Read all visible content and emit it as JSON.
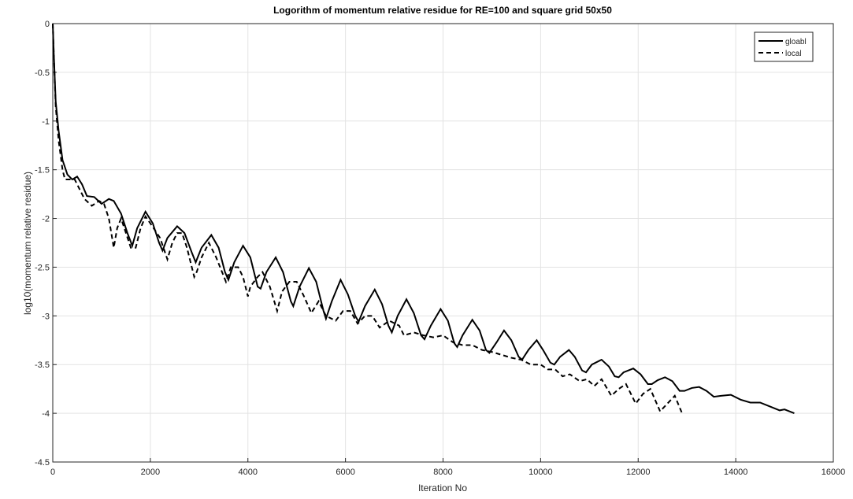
{
  "chart_data": {
    "type": "line",
    "title": "Logorithm of momentum relative residue for RE=100 and square grid 50x50",
    "x_label": "Iteration No",
    "y_label": "log10(momentum relative residue)",
    "xlim": [
      0,
      16000
    ],
    "xticks": [
      0,
      2000,
      4000,
      6000,
      8000,
      10000,
      12000,
      14000,
      16000
    ],
    "ylim": [
      -4.5,
      0
    ],
    "yticks": [
      -4.5,
      -4,
      -3.5,
      -3,
      -2.5,
      -2,
      -1.5,
      -1,
      -0.5,
      0
    ],
    "grid": true,
    "legend_position": "northeast",
    "series": [
      {
        "name": "gloabl",
        "color": "#000000",
        "line_style": "solid",
        "x": [
          0,
          20,
          60,
          120,
          200,
          300,
          400,
          500,
          600,
          700,
          850,
          1000,
          1150,
          1250,
          1400,
          1530,
          1630,
          1730,
          1900,
          2050,
          2180,
          2250,
          2350,
          2550,
          2700,
          2850,
          2930,
          3050,
          3250,
          3400,
          3530,
          3600,
          3720,
          3900,
          4050,
          4200,
          4260,
          4380,
          4570,
          4720,
          4880,
          4930,
          5060,
          5250,
          5400,
          5550,
          5600,
          5720,
          5900,
          6050,
          6200,
          6270,
          6400,
          6600,
          6750,
          6880,
          6950,
          7070,
          7250,
          7400,
          7550,
          7620,
          7750,
          7950,
          8100,
          8230,
          8290,
          8400,
          8600,
          8750,
          8880,
          8950,
          9100,
          9250,
          9400,
          9550,
          9620,
          9750,
          9920,
          10050,
          10200,
          10280,
          10400,
          10580,
          10700,
          10850,
          10930,
          11050,
          11250,
          11400,
          11520,
          11600,
          11700,
          11900,
          12050,
          12200,
          12280,
          12400,
          12550,
          12700,
          12850,
          12950,
          13100,
          13250,
          13400,
          13550,
          13700,
          13900,
          14100,
          14300,
          14500,
          14700,
          14900,
          15000,
          15200
        ],
        "values": [
          0,
          -0.3,
          -0.8,
          -1.1,
          -1.4,
          -1.55,
          -1.6,
          -1.57,
          -1.65,
          -1.77,
          -1.78,
          -1.85,
          -1.8,
          -1.82,
          -1.95,
          -2.15,
          -2.28,
          -2.1,
          -1.93,
          -2.05,
          -2.25,
          -2.33,
          -2.2,
          -2.08,
          -2.15,
          -2.35,
          -2.45,
          -2.3,
          -2.17,
          -2.3,
          -2.55,
          -2.63,
          -2.45,
          -2.28,
          -2.4,
          -2.7,
          -2.72,
          -2.55,
          -2.4,
          -2.55,
          -2.85,
          -2.9,
          -2.7,
          -2.51,
          -2.65,
          -2.95,
          -3.03,
          -2.85,
          -2.63,
          -2.78,
          -3.0,
          -3.06,
          -2.9,
          -2.73,
          -2.88,
          -3.1,
          -3.17,
          -3.0,
          -2.83,
          -2.97,
          -3.2,
          -3.24,
          -3.1,
          -2.93,
          -3.05,
          -3.28,
          -3.32,
          -3.2,
          -3.04,
          -3.15,
          -3.35,
          -3.38,
          -3.27,
          -3.15,
          -3.25,
          -3.42,
          -3.45,
          -3.35,
          -3.25,
          -3.35,
          -3.48,
          -3.5,
          -3.42,
          -3.35,
          -3.42,
          -3.56,
          -3.58,
          -3.5,
          -3.45,
          -3.52,
          -3.62,
          -3.63,
          -3.58,
          -3.54,
          -3.6,
          -3.7,
          -3.7,
          -3.66,
          -3.63,
          -3.67,
          -3.77,
          -3.77,
          -3.74,
          -3.73,
          -3.77,
          -3.83,
          -3.82,
          -3.81,
          -3.86,
          -3.89,
          -3.89,
          -3.93,
          -3.97,
          -3.96,
          -4.0
        ]
      },
      {
        "name": "local",
        "color": "#000000",
        "line_style": "dashed",
        "x": [
          0,
          20,
          60,
          120,
          200,
          250,
          350,
          450,
          550,
          650,
          800,
          950,
          1050,
          1150,
          1250,
          1320,
          1400,
          1500,
          1600,
          1700,
          1800,
          1900,
          2000,
          2200,
          2350,
          2450,
          2550,
          2650,
          2750,
          2900,
          2950,
          3050,
          3200,
          3350,
          3550,
          3650,
          3800,
          3900,
          4000,
          4050,
          4200,
          4300,
          4450,
          4600,
          4700,
          4850,
          5000,
          5150,
          5300,
          5450,
          5600,
          5800,
          5950,
          6100,
          6250,
          6400,
          6550,
          6700,
          6900,
          7100,
          7200,
          7400,
          7600,
          7800,
          8000,
          8200,
          8400,
          8600,
          8800,
          9000,
          9200,
          9400,
          9600,
          9800,
          10000,
          10150,
          10300,
          10450,
          10600,
          10800,
          10950,
          11100,
          11250,
          11450,
          11600,
          11750,
          11950,
          12100,
          12250,
          12450,
          12600,
          12750,
          12900
        ],
        "values": [
          0,
          -0.3,
          -0.85,
          -1.2,
          -1.5,
          -1.6,
          -1.6,
          -1.6,
          -1.7,
          -1.8,
          -1.87,
          -1.82,
          -1.85,
          -2.0,
          -2.3,
          -2.1,
          -2.0,
          -2.15,
          -2.3,
          -2.3,
          -2.1,
          -1.98,
          -2.05,
          -2.2,
          -2.42,
          -2.25,
          -2.15,
          -2.15,
          -2.3,
          -2.6,
          -2.55,
          -2.4,
          -2.25,
          -2.4,
          -2.65,
          -2.5,
          -2.5,
          -2.6,
          -2.8,
          -2.7,
          -2.6,
          -2.55,
          -2.7,
          -2.95,
          -2.75,
          -2.65,
          -2.65,
          -2.8,
          -2.97,
          -2.85,
          -3.0,
          -3.05,
          -2.95,
          -2.95,
          -3.08,
          -3.0,
          -3.0,
          -3.12,
          -3.05,
          -3.1,
          -3.2,
          -3.17,
          -3.2,
          -3.22,
          -3.2,
          -3.27,
          -3.3,
          -3.3,
          -3.35,
          -3.37,
          -3.4,
          -3.43,
          -3.45,
          -3.5,
          -3.5,
          -3.55,
          -3.55,
          -3.62,
          -3.6,
          -3.67,
          -3.65,
          -3.72,
          -3.65,
          -3.82,
          -3.75,
          -3.7,
          -3.9,
          -3.8,
          -3.75,
          -3.98,
          -3.9,
          -3.82,
          -4.0
        ]
      }
    ]
  }
}
